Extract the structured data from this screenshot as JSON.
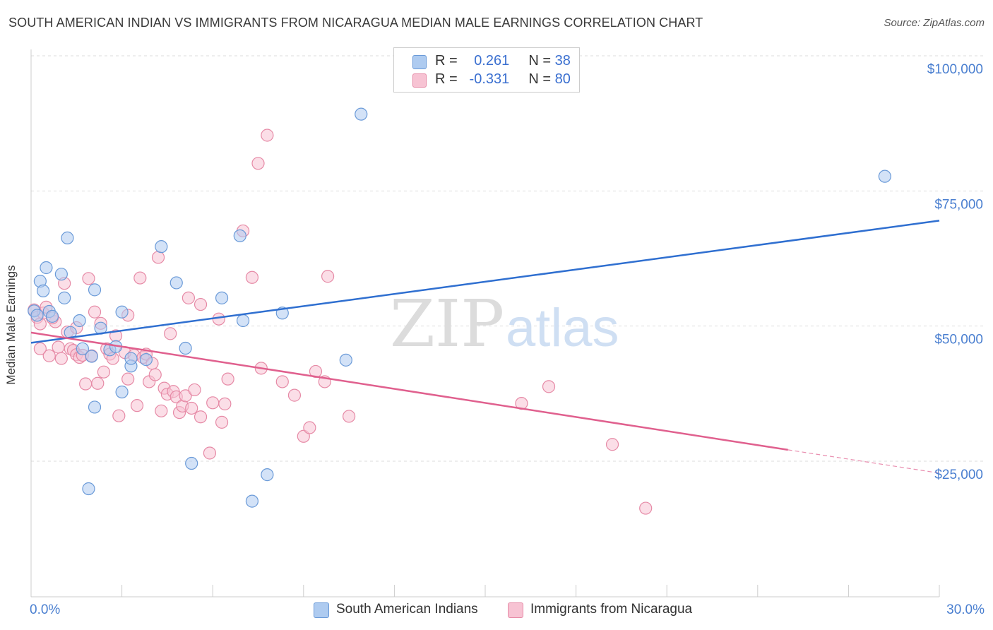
{
  "title": "SOUTH AMERICAN INDIAN VS IMMIGRANTS FROM NICARAGUA MEDIAN MALE EARNINGS CORRELATION CHART",
  "source": "Source: ZipAtlas.com",
  "watermark": {
    "zip": "ZIP",
    "atlas": "atlas"
  },
  "legend": {
    "r_label": "R =",
    "n_label": "N =",
    "rows": [
      {
        "r": "0.261",
        "n": "38"
      },
      {
        "r": "-0.331",
        "n": "80"
      }
    ]
  },
  "bottom_legend": [
    "South American Indians",
    "Immigrants from Nicaragua"
  ],
  "colors": {
    "blue_fill": "#aecbf0",
    "blue_stroke": "#6a9ad8",
    "blue_line": "#2f6fd0",
    "pink_fill": "#f7c3d3",
    "pink_stroke": "#e68aa6",
    "pink_line": "#e0608e",
    "tick_text": "#4a7fd0",
    "grid": "#dddddd"
  },
  "chart_data": {
    "type": "scatter",
    "ylabel": "Median Male Earnings",
    "xlim": [
      0,
      30
    ],
    "ylim": [
      0,
      105000
    ],
    "y_ticks": [
      25000,
      50000,
      75000,
      100000
    ],
    "y_tick_labels": [
      "$25,000",
      "$50,000",
      "$75,000",
      "$100,000"
    ],
    "x_tick_labels": [
      "0.0%",
      "30.0%"
    ],
    "grid": "horizontal dashed",
    "legend_position": "top-center",
    "series": [
      {
        "name": "South American Indians",
        "r": 0.261,
        "n": 38,
        "trend": {
          "x": [
            0,
            30
          ],
          "y": [
            46900,
            69500
          ]
        },
        "points": [
          [
            0.1,
            52800
          ],
          [
            0.2,
            52000
          ],
          [
            0.3,
            58300
          ],
          [
            0.4,
            56500
          ],
          [
            0.5,
            60800
          ],
          [
            0.6,
            52700
          ],
          [
            0.7,
            51800
          ],
          [
            1.0,
            59600
          ],
          [
            1.2,
            66300
          ],
          [
            1.1,
            55200
          ],
          [
            1.3,
            48800
          ],
          [
            1.6,
            51000
          ],
          [
            1.7,
            45800
          ],
          [
            2.0,
            44400
          ],
          [
            2.1,
            56700
          ],
          [
            2.3,
            49600
          ],
          [
            2.6,
            45600
          ],
          [
            2.8,
            46200
          ],
          [
            3.0,
            37800
          ],
          [
            3.0,
            52600
          ],
          [
            3.3,
            42600
          ],
          [
            3.3,
            44000
          ],
          [
            3.8,
            43800
          ],
          [
            4.3,
            64700
          ],
          [
            4.8,
            58000
          ],
          [
            5.1,
            45900
          ],
          [
            5.3,
            24600
          ],
          [
            6.3,
            55200
          ],
          [
            6.9,
            66700
          ],
          [
            7.0,
            51000
          ],
          [
            7.3,
            17600
          ],
          [
            7.8,
            22500
          ],
          [
            8.3,
            52400
          ],
          [
            10.4,
            43700
          ],
          [
            10.9,
            89200
          ],
          [
            28.2,
            77700
          ],
          [
            1.9,
            19900
          ],
          [
            2.1,
            35000
          ]
        ]
      },
      {
        "name": "Immigrants from Nicaragua",
        "r": -0.331,
        "n": 80,
        "trend": {
          "x": [
            0,
            25
          ],
          "y": [
            48800,
            27100
          ]
        },
        "trend_dashed": {
          "x": [
            25,
            30
          ],
          "y": [
            27100,
            22800
          ]
        },
        "points": [
          [
            0.1,
            53000
          ],
          [
            0.2,
            51600
          ],
          [
            0.3,
            50400
          ],
          [
            0.4,
            52400
          ],
          [
            0.5,
            53500
          ],
          [
            0.6,
            44500
          ],
          [
            0.8,
            50800
          ],
          [
            0.9,
            46100
          ],
          [
            1.0,
            44000
          ],
          [
            1.1,
            57900
          ],
          [
            1.2,
            48900
          ],
          [
            1.3,
            45800
          ],
          [
            1.4,
            45500
          ],
          [
            1.5,
            44700
          ],
          [
            1.6,
            44200
          ],
          [
            1.7,
            44600
          ],
          [
            1.8,
            39300
          ],
          [
            1.9,
            58800
          ],
          [
            2.0,
            44500
          ],
          [
            2.1,
            52600
          ],
          [
            2.2,
            39400
          ],
          [
            2.3,
            50500
          ],
          [
            2.4,
            41500
          ],
          [
            2.5,
            45800
          ],
          [
            2.6,
            44800
          ],
          [
            2.7,
            44000
          ],
          [
            2.8,
            48200
          ],
          [
            2.9,
            33400
          ],
          [
            3.1,
            45100
          ],
          [
            3.2,
            40200
          ],
          [
            3.4,
            44600
          ],
          [
            3.5,
            35300
          ],
          [
            3.6,
            58900
          ],
          [
            3.7,
            44200
          ],
          [
            3.8,
            44800
          ],
          [
            3.9,
            39700
          ],
          [
            4.0,
            43100
          ],
          [
            4.1,
            41000
          ],
          [
            4.2,
            62700
          ],
          [
            4.3,
            34300
          ],
          [
            4.4,
            38500
          ],
          [
            4.5,
            37400
          ],
          [
            4.6,
            48600
          ],
          [
            4.7,
            37900
          ],
          [
            4.8,
            36900
          ],
          [
            4.9,
            34000
          ],
          [
            5.0,
            35200
          ],
          [
            5.1,
            37100
          ],
          [
            5.2,
            55200
          ],
          [
            5.3,
            34800
          ],
          [
            5.4,
            38200
          ],
          [
            5.6,
            54000
          ],
          [
            5.9,
            26500
          ],
          [
            6.0,
            35800
          ],
          [
            6.2,
            51300
          ],
          [
            6.3,
            32200
          ],
          [
            6.4,
            35600
          ],
          [
            6.5,
            40200
          ],
          [
            7.0,
            67600
          ],
          [
            7.3,
            59000
          ],
          [
            7.5,
            80100
          ],
          [
            7.6,
            42200
          ],
          [
            7.8,
            85300
          ],
          [
            8.3,
            39700
          ],
          [
            8.7,
            37200
          ],
          [
            9.0,
            29600
          ],
          [
            9.2,
            31200
          ],
          [
            9.4,
            41600
          ],
          [
            9.7,
            39700
          ],
          [
            9.8,
            59200
          ],
          [
            10.5,
            33300
          ],
          [
            16.2,
            35700
          ],
          [
            17.1,
            38800
          ],
          [
            19.2,
            28100
          ],
          [
            20.3,
            16300
          ],
          [
            0.3,
            45800
          ],
          [
            0.7,
            51500
          ],
          [
            1.5,
            49700
          ],
          [
            3.2,
            52000
          ],
          [
            5.6,
            33200
          ]
        ]
      }
    ]
  }
}
